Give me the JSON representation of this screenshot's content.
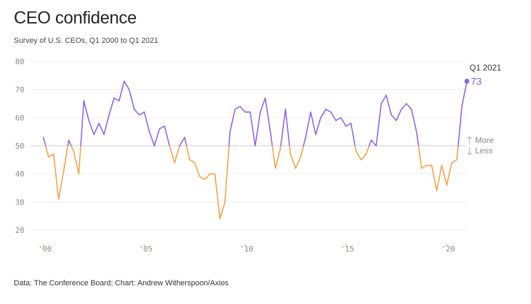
{
  "header": {
    "title": "CEO confidence",
    "subtitle": "Survey of U.S. CEOs, Q1 2000 to Q1 2021"
  },
  "footer": {
    "source": "Data: The Conference Board; Chart: Andrew Witherspoon/Axios"
  },
  "colors": {
    "above": "#8b63e6",
    "below": "#f5a04a",
    "grid": "#eeeeee",
    "reference": "#cccccc"
  },
  "chart_data": {
    "type": "line",
    "title": "CEO confidence",
    "subtitle": "Survey of U.S. CEOs, Q1 2000 to Q1 2021",
    "xlabel": "",
    "ylabel": "",
    "ylim": [
      20,
      80
    ],
    "xlim": [
      2000,
      2021
    ],
    "yticks": [
      "80",
      "70",
      "60",
      "50",
      "40",
      "30",
      "20"
    ],
    "yticks_values": [
      80,
      70,
      60,
      50,
      40,
      30,
      20
    ],
    "xticks": [
      "'00",
      "'05",
      "'10",
      "'15",
      "'20"
    ],
    "xticks_values": [
      2000,
      2005,
      2010,
      2015,
      2020
    ],
    "grid": true,
    "reference_line": {
      "value": 50,
      "above_label": "More",
      "below_label": "Less"
    },
    "end_label": {
      "label": "Q1 2021",
      "value": "73"
    },
    "series": [
      {
        "x": [
          "Q1 2000",
          "Q2 2000",
          "Q3 2000",
          "Q4 2000",
          "Q1 2001",
          "Q2 2001",
          "Q3 2001",
          "Q4 2001",
          "Q1 2002",
          "Q2 2002",
          "Q3 2002",
          "Q4 2002",
          "Q1 2003",
          "Q2 2003",
          "Q3 2003",
          "Q4 2003",
          "Q1 2004",
          "Q2 2004",
          "Q3 2004",
          "Q4 2004",
          "Q1 2005",
          "Q2 2005",
          "Q3 2005",
          "Q4 2005",
          "Q1 2006",
          "Q2 2006",
          "Q3 2006",
          "Q4 2006",
          "Q1 2007",
          "Q2 2007",
          "Q3 2007",
          "Q4 2007",
          "Q1 2008",
          "Q2 2008",
          "Q3 2008",
          "Q4 2008",
          "Q1 2009",
          "Q2 2009",
          "Q3 2009",
          "Q4 2009",
          "Q1 2010",
          "Q2 2010",
          "Q3 2010",
          "Q4 2010",
          "Q1 2011",
          "Q2 2011",
          "Q3 2011",
          "Q4 2011",
          "Q1 2012",
          "Q2 2012",
          "Q3 2012",
          "Q4 2012",
          "Q1 2013",
          "Q2 2013",
          "Q3 2013",
          "Q4 2013",
          "Q1 2014",
          "Q2 2014",
          "Q3 2014",
          "Q4 2014",
          "Q1 2015",
          "Q2 2015",
          "Q3 2015",
          "Q4 2015",
          "Q1 2016",
          "Q2 2016",
          "Q3 2016",
          "Q4 2016",
          "Q1 2017",
          "Q2 2017",
          "Q3 2017",
          "Q4 2017",
          "Q1 2018",
          "Q2 2018",
          "Q3 2018",
          "Q4 2018",
          "Q1 2019",
          "Q2 2019",
          "Q3 2019",
          "Q4 2019",
          "Q1 2020",
          "Q2 2020",
          "Q3 2020",
          "Q4 2020",
          "Q1 2021"
        ],
        "values": [
          53,
          46,
          47,
          31,
          41,
          52,
          48,
          40,
          66,
          59,
          54,
          58,
          54,
          61,
          67,
          66,
          73,
          70,
          63,
          61,
          62,
          55,
          50,
          56,
          57,
          50,
          44,
          50,
          53,
          45,
          44,
          39,
          38,
          40,
          40,
          24,
          30,
          55,
          63,
          64,
          62,
          62,
          50,
          62,
          67,
          55,
          42,
          49,
          63,
          47,
          42,
          46,
          53,
          62,
          54,
          60,
          63,
          62,
          59,
          60,
          57,
          58,
          48,
          45,
          47,
          52,
          50,
          65,
          68,
          61,
          59,
          63,
          65,
          63,
          55,
          42,
          43,
          43,
          34,
          43,
          36,
          44,
          45,
          64,
          73
        ]
      }
    ]
  }
}
